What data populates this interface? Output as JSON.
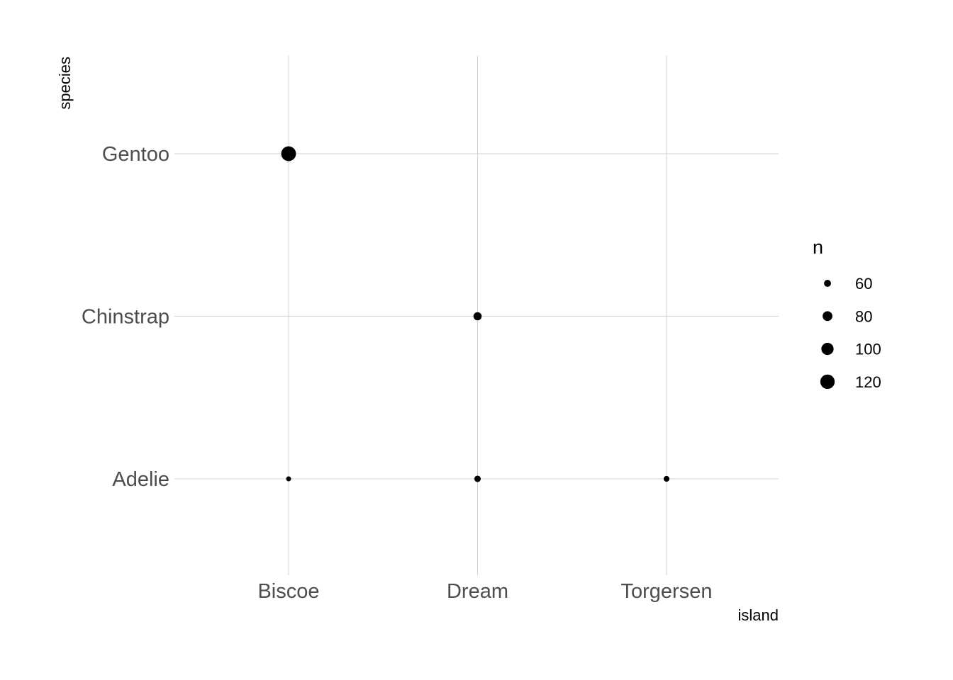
{
  "chart_data": {
    "type": "scatter",
    "xlabel": "island",
    "ylabel": "species",
    "x_categories": [
      "Biscoe",
      "Dream",
      "Torgersen"
    ],
    "y_categories": [
      "Adelie",
      "Chinstrap",
      "Gentoo"
    ],
    "points": [
      {
        "x": "Biscoe",
        "y": "Adelie",
        "n": 44
      },
      {
        "x": "Dream",
        "y": "Adelie",
        "n": 56
      },
      {
        "x": "Torgersen",
        "y": "Adelie",
        "n": 52
      },
      {
        "x": "Dream",
        "y": "Chinstrap",
        "n": 68
      },
      {
        "x": "Biscoe",
        "y": "Gentoo",
        "n": 124
      }
    ],
    "size_legend": {
      "title": "n",
      "breaks": [
        60,
        80,
        100,
        120
      ],
      "labels": [
        "60",
        "80",
        "100",
        "120"
      ],
      "placement": "right"
    },
    "grid": true,
    "point_color": "#000000"
  }
}
